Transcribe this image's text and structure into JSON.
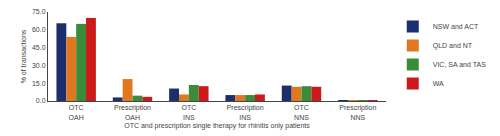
{
  "chart_data": {
    "type": "bar",
    "xlabel": "OTC and prescription single therapy for rhinitis only patients",
    "ylabel": "% of transactions",
    "categories": [
      "OTC OAH",
      "Prescription OAH",
      "OTC INS",
      "Prescription INS",
      "OTC NNS",
      "Prescription NNS"
    ],
    "series": [
      {
        "name": "NSW and ACT",
        "color": "#1a2f6b",
        "values": [
          65.5,
          3.0,
          10.5,
          5.0,
          13.0,
          0.3
        ]
      },
      {
        "name": "QLD and NT",
        "color": "#e07820",
        "values": [
          54.0,
          18.5,
          5.5,
          5.0,
          12.0,
          0.5
        ]
      },
      {
        "name": "VIC, SA and TAS",
        "color": "#3a8c3a",
        "values": [
          65.0,
          4.5,
          13.5,
          5.0,
          12.5,
          0.5
        ]
      },
      {
        "name": "WA",
        "color": "#cc1a1a",
        "values": [
          70.0,
          3.5,
          12.5,
          5.5,
          12.0,
          0.7
        ]
      }
    ],
    "ylim": [
      0,
      75.0
    ],
    "yticks": [
      {
        "value": 0.0,
        "label": "0.0"
      },
      {
        "value": 15.0,
        "label": "15.0"
      },
      {
        "value": 30.0,
        "label": "30.0"
      },
      {
        "value": 45.0,
        "label": "45.0"
      },
      {
        "value": 60.0,
        "label": "60.0"
      },
      {
        "value": 75.0,
        "label": "75.0"
      }
    ],
    "grid": false,
    "legend": "right"
  }
}
